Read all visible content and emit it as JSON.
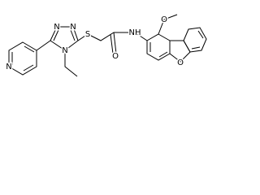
{
  "atoms": [
    {
      "label": "N"
    },
    {
      "label": "N"
    },
    {
      "label": "N"
    },
    {
      "label": "N"
    },
    {
      "label": "S"
    },
    {
      "label": "O"
    },
    {
      "label": "NH"
    },
    {
      "label": "O"
    },
    {
      "label": "O"
    }
  ]
}
